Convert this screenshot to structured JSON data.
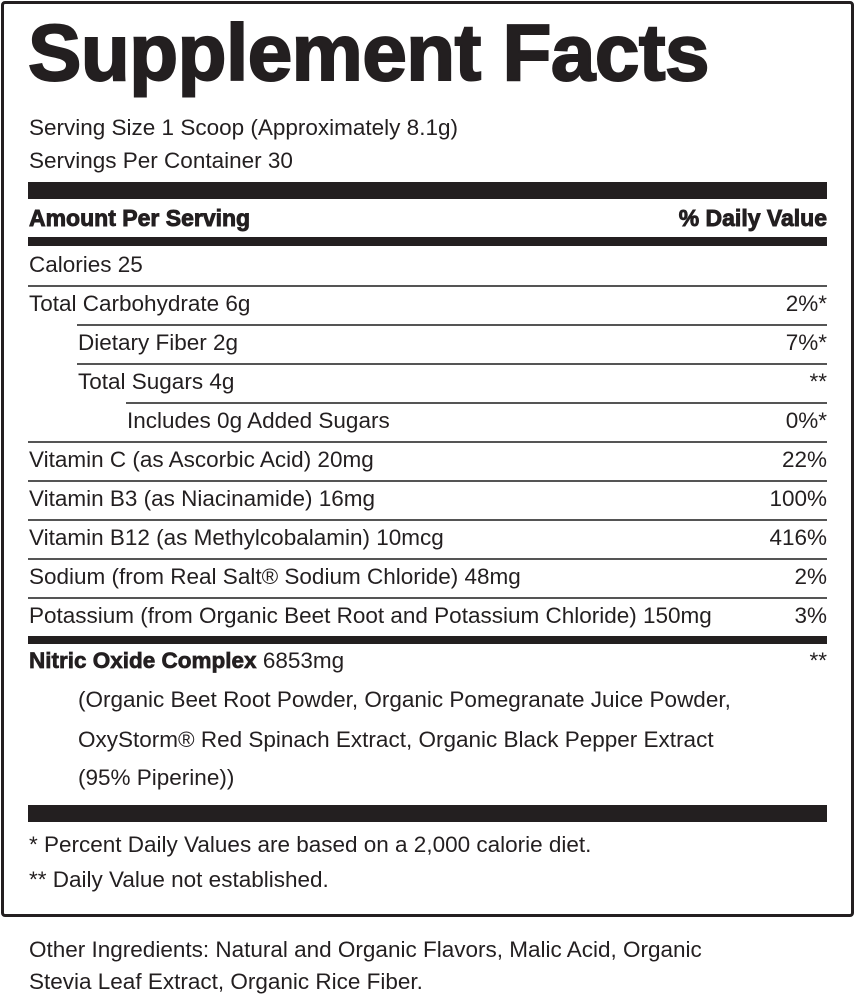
{
  "title": "Supplement Facts",
  "serving_size": "Serving Size 1 Scoop (Approximately 8.1g)",
  "servings_per_container": "Servings Per Container 30",
  "header": {
    "amount": "Amount Per Serving",
    "dv": "% Daily Value"
  },
  "rows": [
    {
      "label": "Calories 25",
      "dv": ""
    },
    {
      "label": "Total Carbohydrate 6g",
      "dv": "2%*"
    },
    {
      "label": "Dietary Fiber 2g",
      "dv": "7%*"
    },
    {
      "label": "Total Sugars 4g",
      "dv": "**"
    },
    {
      "label": "Includes 0g Added Sugars",
      "dv": "0%*"
    },
    {
      "label": "Vitamin C (as Ascorbic Acid) 20mg",
      "dv": "22%"
    },
    {
      "label": "Vitamin B3 (as Niacinamide) 16mg",
      "dv": "100%"
    },
    {
      "label": "Vitamin B12 (as Methylcobalamin) 10mcg",
      "dv": "416%"
    },
    {
      "label": "Sodium (from Real Salt® Sodium Chloride) 48mg",
      "dv": "2%"
    },
    {
      "label": "Potassium (from Organic Beet Root and Potassium Chloride) 150mg",
      "dv": "3%"
    }
  ],
  "blend": {
    "name": "Nitric Oxide Complex",
    "amount": "6853mg",
    "dv": "**",
    "lines": [
      "(Organic Beet Root Powder, Organic Pomegranate Juice Powder,",
      "OxyStorm® Red Spinach Extract, Organic Black Pepper Extract",
      "(95% Piperine))"
    ]
  },
  "footnotes": [
    "* Percent Daily Values are based on a 2,000 calorie diet.",
    "** Daily Value not established."
  ],
  "other_ingredients": [
    "Other Ingredients: Natural and Organic Flavors, Malic Acid, Organic",
    "Stevia Leaf Extract, Organic Rice Fiber."
  ]
}
